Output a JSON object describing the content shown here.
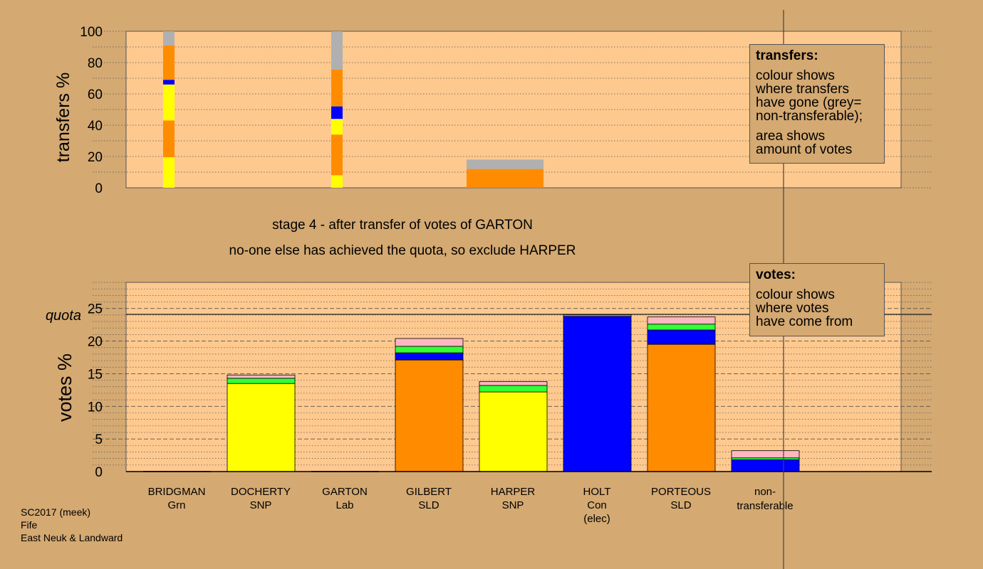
{
  "colors": {
    "background": "#d4a972",
    "plot_bg": "#fec98f",
    "yellow": "#ffff00",
    "orange": "#ff8c00",
    "blue": "#0000ff",
    "green": "#33ff33",
    "pink": "#ffb6c1",
    "grey": "#b0b0b0"
  },
  "caption": {
    "line1": "stage 4 - after transfer of votes of GARTON",
    "line2": "no-one else has achieved the quota, so exclude HARPER"
  },
  "legend_transfers": {
    "title": "transfers:",
    "line1": "colour shows\nwhere transfers\nhave gone (grey=\nnon-transferable);",
    "line2": "area shows\namount of votes"
  },
  "legend_votes": {
    "title": "votes:",
    "line1": "colour shows\nwhere votes\nhave come from"
  },
  "footer": {
    "line1": "SC2017 (meek)",
    "line2": "Fife",
    "line3": "East Neuk & Landward"
  },
  "candidates": [
    {
      "name": "BRIDGMAN",
      "party": "Grn",
      "note": ""
    },
    {
      "name": "DOCHERTY",
      "party": "SNP",
      "note": ""
    },
    {
      "name": "GARTON",
      "party": "Lab",
      "note": ""
    },
    {
      "name": "GILBERT",
      "party": "SLD",
      "note": ""
    },
    {
      "name": "HARPER",
      "party": "SNP",
      "note": ""
    },
    {
      "name": "HOLT",
      "party": "Con",
      "note": "(elec)"
    },
    {
      "name": "PORTEOUS",
      "party": "SLD",
      "note": ""
    },
    {
      "name": "non-",
      "party": "transferable",
      "note": ""
    }
  ],
  "chart_data": [
    {
      "type": "bar",
      "stacked": true,
      "ylabel": "transfers %",
      "ylim": [
        0,
        100
      ],
      "yticks": [
        0,
        20,
        40,
        60,
        80,
        100
      ],
      "bars": [
        {
          "candidate": "BRIDGMAN",
          "width_share": 1,
          "segments": [
            {
              "color": "yellow",
              "value": 19.5
            },
            {
              "color": "orange",
              "value": 23.5
            },
            {
              "color": "yellow",
              "value": 23.0
            },
            {
              "color": "blue",
              "value": 3.0
            },
            {
              "color": "orange",
              "value": 22.0
            },
            {
              "color": "grey",
              "value": 9.0
            }
          ]
        },
        {
          "candidate": "GARTON",
          "width_share": 1,
          "segments": [
            {
              "color": "yellow",
              "value": 8.0
            },
            {
              "color": "orange",
              "value": 26.0
            },
            {
              "color": "yellow",
              "value": 10.0
            },
            {
              "color": "blue",
              "value": 8.0
            },
            {
              "color": "orange",
              "value": 23.5
            },
            {
              "color": "grey",
              "value": 24.5
            }
          ]
        },
        {
          "candidate": "HARPER",
          "width_share": 6,
          "segments": [
            {
              "color": "orange",
              "value": 12.0
            },
            {
              "color": "grey",
              "value": 6.0
            }
          ]
        }
      ]
    },
    {
      "type": "bar",
      "stacked": true,
      "ylabel": "votes %",
      "ylim": [
        0,
        29
      ],
      "yticks": [
        0,
        5,
        10,
        15,
        20,
        25
      ],
      "quota": 24.1,
      "quota_label": "quota",
      "bars": [
        {
          "candidate": "BRIDGMAN",
          "segments": []
        },
        {
          "candidate": "DOCHERTY",
          "segments": [
            {
              "color": "yellow",
              "value": 13.5
            },
            {
              "color": "green",
              "value": 0.8
            },
            {
              "color": "pink",
              "value": 0.5
            }
          ]
        },
        {
          "candidate": "GARTON",
          "segments": []
        },
        {
          "candidate": "GILBERT",
          "segments": [
            {
              "color": "orange",
              "value": 17.1
            },
            {
              "color": "blue",
              "value": 1.1
            },
            {
              "color": "green",
              "value": 1.0
            },
            {
              "color": "pink",
              "value": 1.2
            }
          ]
        },
        {
          "candidate": "HARPER",
          "segments": [
            {
              "color": "yellow",
              "value": 12.2
            },
            {
              "color": "green",
              "value": 1.0
            },
            {
              "color": "pink",
              "value": 0.6
            }
          ]
        },
        {
          "candidate": "HOLT",
          "segments": [
            {
              "color": "blue",
              "value": 23.8
            },
            {
              "color": "pink",
              "value": 0.2
            }
          ]
        },
        {
          "candidate": "PORTEOUS",
          "segments": [
            {
              "color": "orange",
              "value": 19.5
            },
            {
              "color": "blue",
              "value": 2.2
            },
            {
              "color": "green",
              "value": 0.9
            },
            {
              "color": "pink",
              "value": 1.1
            }
          ]
        },
        {
          "candidate": "non-transferable",
          "segments": [
            {
              "color": "blue",
              "value": 1.8
            },
            {
              "color": "green",
              "value": 0.3
            },
            {
              "color": "pink",
              "value": 1.1
            }
          ]
        }
      ]
    }
  ]
}
